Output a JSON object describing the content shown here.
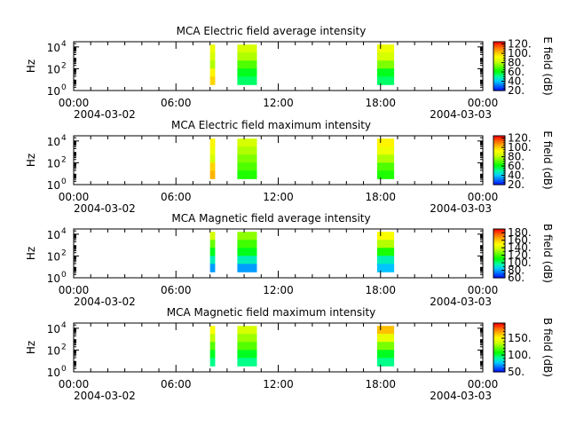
{
  "colors": {
    "background": "#ffffff",
    "axis": "#000000",
    "colormap": [
      "#0000ff",
      "#0066ff",
      "#00ccff",
      "#00ff99",
      "#00ff00",
      "#66ff00",
      "#ccff00",
      "#ffff00",
      "#ffbb00",
      "#ff6600",
      "#ff0000"
    ]
  },
  "chart_data": [
    {
      "type": "heatmap",
      "title": "MCA  Electric field average intensity",
      "ylabel": "Hz",
      "ytick_labels": [
        {
          "base": "10",
          "exp": "0",
          "value": 1
        },
        {
          "base": "10",
          "exp": "2",
          "value": 100
        },
        {
          "base": "10",
          "exp": "4",
          "value": 10000
        }
      ],
      "yscale": "log",
      "ylim": [
        1,
        30000
      ],
      "x_range_hours": [
        0,
        24
      ],
      "x_tick_hours": [
        0,
        6,
        12,
        18,
        24
      ],
      "x_tick_labels": [
        "00:00",
        "06:00",
        "12:00",
        "18:00",
        "00:00"
      ],
      "date_labels": [
        "2004-03-02",
        "2004-03-03"
      ],
      "colorbar": {
        "label": "E field (dB)",
        "range": [
          20,
          125
        ],
        "tick_values": [
          20,
          40,
          60,
          80,
          100,
          120
        ],
        "tick_labels": [
          "20.",
          "40.",
          "60.",
          "80.",
          "100.",
          "120."
        ]
      },
      "data_blocks": [
        {
          "start_hour": 8.0,
          "end_hour": 8.3,
          "levels": [
            90,
            85,
            80,
            95,
            100
          ]
        },
        {
          "start_hour": 9.6,
          "end_hour": 10.75,
          "levels": [
            85,
            80,
            70,
            60,
            55
          ]
        },
        {
          "start_hour": 17.8,
          "end_hour": 18.8,
          "levels": [
            90,
            85,
            75,
            60,
            55
          ]
        }
      ]
    },
    {
      "type": "heatmap",
      "title": "MCA  Electric field maximum intensity",
      "ylabel": "Hz",
      "ytick_labels": [
        {
          "base": "10",
          "exp": "0",
          "value": 1
        },
        {
          "base": "10",
          "exp": "2",
          "value": 100
        },
        {
          "base": "10",
          "exp": "4",
          "value": 10000
        }
      ],
      "yscale": "log",
      "ylim": [
        1,
        30000
      ],
      "x_range_hours": [
        0,
        24
      ],
      "x_tick_hours": [
        0,
        6,
        12,
        18,
        24
      ],
      "x_tick_labels": [
        "00:00",
        "06:00",
        "12:00",
        "18:00",
        "00:00"
      ],
      "date_labels": [
        "2004-03-02",
        "2004-03-03"
      ],
      "colorbar": {
        "label": "E field (dB)",
        "range": [
          20,
          125
        ],
        "tick_values": [
          20,
          40,
          60,
          80,
          100,
          120
        ],
        "tick_labels": [
          "20.",
          "40.",
          "60.",
          "80.",
          "100.",
          "120."
        ]
      },
      "data_blocks": [
        {
          "start_hour": 8.0,
          "end_hour": 8.3,
          "levels": [
            95,
            90,
            85,
            100,
            105
          ]
        },
        {
          "start_hour": 9.6,
          "end_hour": 10.75,
          "levels": [
            85,
            80,
            75,
            70,
            65
          ]
        },
        {
          "start_hour": 17.8,
          "end_hour": 18.8,
          "levels": [
            95,
            90,
            80,
            70,
            65
          ]
        }
      ]
    },
    {
      "type": "heatmap",
      "title": "MCA  Magnetic field average intensity",
      "ylabel": "Hz",
      "ytick_labels": [
        {
          "base": "10",
          "exp": "0",
          "value": 1
        },
        {
          "base": "10",
          "exp": "2",
          "value": 100
        },
        {
          "base": "10",
          "exp": "4",
          "value": 10000
        }
      ],
      "yscale": "log",
      "ylim": [
        1,
        30000
      ],
      "x_range_hours": [
        0,
        24
      ],
      "x_tick_hours": [
        0,
        6,
        12,
        18,
        24
      ],
      "x_tick_labels": [
        "00:00",
        "06:00",
        "12:00",
        "18:00",
        "00:00"
      ],
      "date_labels": [
        "2004-03-02",
        "2004-03-03"
      ],
      "colorbar": {
        "label": "B field (dB)",
        "range": [
          60,
          190
        ],
        "tick_values": [
          60,
          80,
          100,
          120,
          140,
          160,
          180
        ],
        "tick_labels": [
          "60.",
          "80.",
          "100.",
          "120.",
          "140.",
          "160.",
          "180."
        ]
      },
      "data_blocks": [
        {
          "start_hour": 8.0,
          "end_hour": 8.3,
          "levels": [
            140,
            125,
            110,
            95,
            80
          ]
        },
        {
          "start_hour": 9.6,
          "end_hour": 10.75,
          "levels": [
            130,
            120,
            110,
            95,
            80
          ]
        },
        {
          "start_hour": 17.8,
          "end_hour": 18.8,
          "levels": [
            150,
            135,
            115,
            95,
            85
          ]
        }
      ]
    },
    {
      "type": "heatmap",
      "title": "MCA  Magnetic field maximum intensity",
      "ylabel": "Hz",
      "ytick_labels": [
        {
          "base": "10",
          "exp": "0",
          "value": 1
        },
        {
          "base": "10",
          "exp": "2",
          "value": 100
        },
        {
          "base": "10",
          "exp": "4",
          "value": 10000
        }
      ],
      "yscale": "log",
      "ylim": [
        1,
        30000
      ],
      "x_range_hours": [
        0,
        24
      ],
      "x_tick_hours": [
        0,
        6,
        12,
        18,
        24
      ],
      "x_tick_labels": [
        "00:00",
        "06:00",
        "12:00",
        "18:00",
        "00:00"
      ],
      "date_labels": [
        "2004-03-02",
        "2004-03-03"
      ],
      "colorbar": {
        "label": "B field (dB)",
        "range": [
          50,
          195
        ],
        "tick_values": [
          50,
          100,
          150
        ],
        "tick_labels": [
          "50.",
          "100.",
          "150."
        ]
      },
      "data_blocks": [
        {
          "start_hour": 8.0,
          "end_hour": 8.3,
          "levels": [
            150,
            135,
            120,
            105,
            95
          ]
        },
        {
          "start_hour": 9.6,
          "end_hour": 10.75,
          "levels": [
            140,
            130,
            120,
            105,
            95
          ]
        },
        {
          "start_hour": 17.8,
          "end_hour": 18.8,
          "levels": [
            165,
            145,
            125,
            105,
            95
          ]
        }
      ]
    }
  ]
}
